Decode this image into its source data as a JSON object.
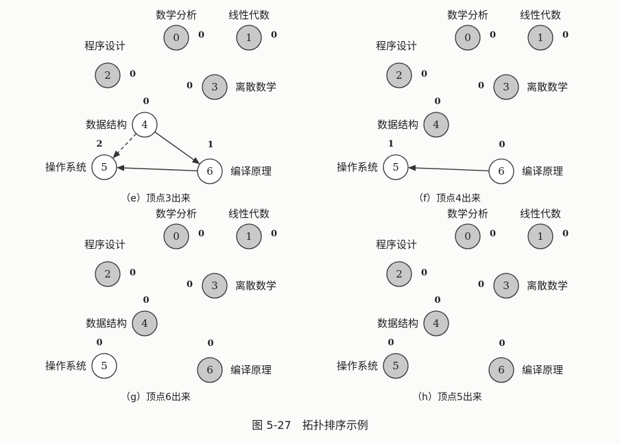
{
  "node_names": [
    "数学分析",
    "线性代数",
    "程序设计",
    "离散数学",
    "数据结构",
    "操作系统",
    "编译原理"
  ],
  "colors": {
    "removed_fill": "#c9c9c9",
    "active_fill": "#ffffff",
    "stroke": "#333333",
    "text": "#1e1e1e"
  },
  "panels": [
    {
      "caption": "（e）顶点3出来",
      "removed": [
        0,
        1,
        2,
        3
      ],
      "in_degrees": [
        "0",
        "0",
        "0",
        "0",
        "0",
        "2",
        "1"
      ],
      "edges": [
        {
          "from": 4,
          "to": 5,
          "style": "dashed"
        },
        {
          "from": 4,
          "to": 6,
          "style": "solid"
        },
        {
          "from": 6,
          "to": 5,
          "style": "solid"
        }
      ]
    },
    {
      "caption": "（f）顶点4出来",
      "removed": [
        0,
        1,
        2,
        3,
        4
      ],
      "in_degrees": [
        "0",
        "0",
        "0",
        "0",
        "0",
        "1",
        "0"
      ],
      "edges": [
        {
          "from": 6,
          "to": 5,
          "style": "solid"
        }
      ]
    },
    {
      "caption": "（g）顶点6出来",
      "removed": [
        0,
        1,
        2,
        3,
        4,
        6
      ],
      "in_degrees": [
        "0",
        "0",
        "0",
        "0",
        "0",
        "0",
        "0"
      ],
      "edges": []
    },
    {
      "caption": "（h）顶点5出来",
      "removed": [
        0,
        1,
        2,
        3,
        4,
        5,
        6
      ],
      "in_degrees": [
        "0",
        "0",
        "0",
        "0",
        "0",
        "0",
        "0"
      ],
      "edges": []
    }
  ],
  "figure_caption": "图 5-27　拓扑排序示例"
}
